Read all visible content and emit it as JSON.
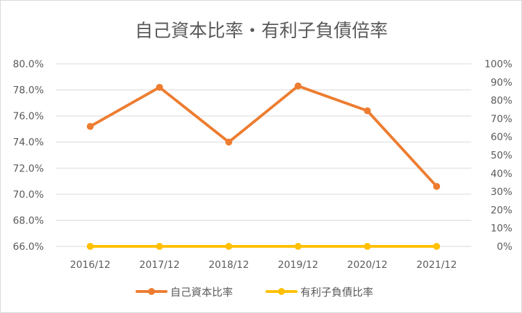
{
  "chart_data": {
    "type": "line",
    "title": "自己資本比率・有利子負債倍率",
    "categories": [
      "2016/12",
      "2017/12",
      "2018/12",
      "2019/12",
      "2020/12",
      "2021/12"
    ],
    "y_left": {
      "min": 0.66,
      "max": 0.8,
      "ticks": [
        0.8,
        0.78,
        0.76,
        0.74,
        0.72,
        0.7,
        0.68,
        0.66
      ],
      "tick_labels": [
        "80.0%",
        "78.0%",
        "76.0%",
        "74.0%",
        "72.0%",
        "70.0%",
        "68.0%",
        "66.0%"
      ]
    },
    "y_right": {
      "min": 0,
      "max": 1.0,
      "ticks": [
        1.0,
        0.9,
        0.8,
        0.7,
        0.6,
        0.5,
        0.4,
        0.3,
        0.2,
        0.1,
        0
      ],
      "tick_labels": [
        "100%",
        "90%",
        "80%",
        "70%",
        "60%",
        "50%",
        "40%",
        "30%",
        "20%",
        "10%",
        "0%"
      ]
    },
    "series": [
      {
        "name": "自己資本比率",
        "axis": "left",
        "color": "#ED7D31",
        "values": [
          0.752,
          0.782,
          0.74,
          0.783,
          0.764,
          0.706
        ]
      },
      {
        "name": "有利子負債比率",
        "axis": "right",
        "color": "#FFC000",
        "values": [
          0,
          0,
          0,
          0,
          0,
          0
        ]
      }
    ],
    "grid": true,
    "legend_position": "bottom"
  }
}
